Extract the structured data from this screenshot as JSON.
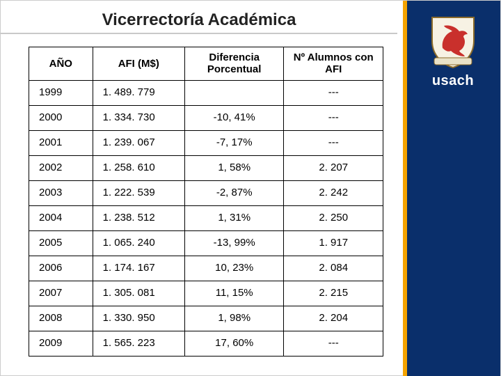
{
  "title": "Vicerrectoría Académica",
  "brand": "usach",
  "sidebar": {
    "bg": "#0a2f6b",
    "accent": "#f4a300"
  },
  "crest": {
    "shield_fill": "#f7f2e4",
    "shield_stroke": "#8a6a2a",
    "lion_fill": "#c9302c",
    "banner_fill": "#e9e2c8"
  },
  "table": {
    "columns": [
      "AÑO",
      "AFI (M$)",
      "Diferencia Porcentual",
      "Nº Alumnos con AFI"
    ],
    "col_align": [
      "left",
      "left",
      "center",
      "center"
    ],
    "border_color": "#000000",
    "header_fontsize": 15,
    "cell_fontsize": 15,
    "rows": [
      [
        "1999",
        "1. 489. 779",
        "",
        "---"
      ],
      [
        "2000",
        "1. 334. 730",
        "-10, 41%",
        "---"
      ],
      [
        "2001",
        "1. 239. 067",
        "-7, 17%",
        "---"
      ],
      [
        "2002",
        "1. 258. 610",
        "1, 58%",
        "2. 207"
      ],
      [
        "2003",
        "1. 222. 539",
        "-2, 87%",
        "2. 242"
      ],
      [
        "2004",
        "1. 238. 512",
        "1, 31%",
        "2. 250"
      ],
      [
        "2005",
        "1. 065. 240",
        "-13, 99%",
        "1. 917"
      ],
      [
        "2006",
        "1. 174. 167",
        "10, 23%",
        "2. 084"
      ],
      [
        "2007",
        "1. 305. 081",
        "11, 15%",
        "2. 215"
      ],
      [
        "2008",
        "1. 330. 950",
        "1, 98%",
        "2. 204"
      ],
      [
        "2009",
        "1. 565. 223",
        "17, 60%",
        "---"
      ]
    ]
  }
}
